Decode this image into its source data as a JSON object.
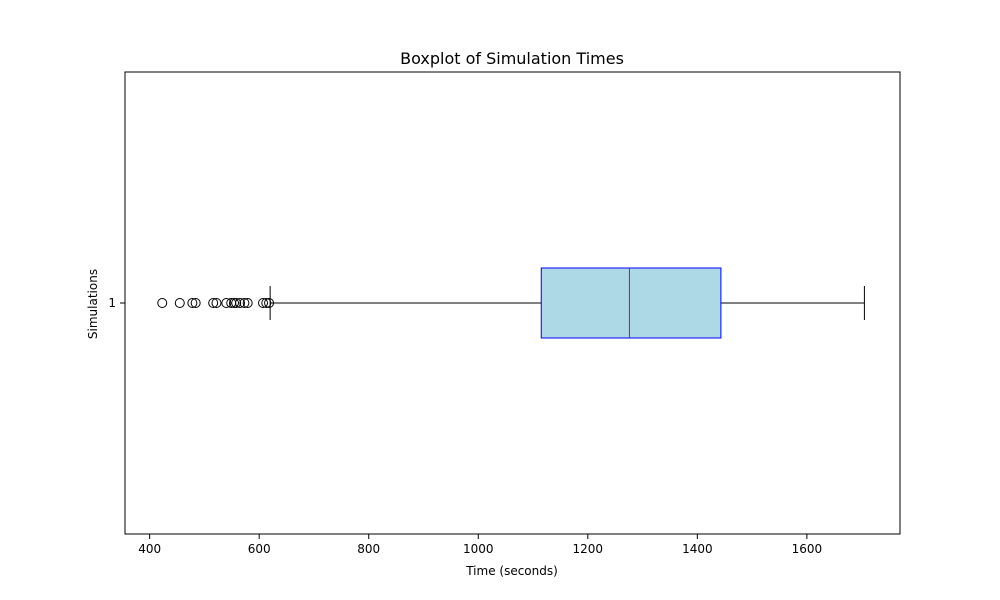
{
  "chart_data": {
    "type": "boxplot",
    "orientation": "horizontal",
    "title": "Boxplot of Simulation Times",
    "xlabel": "Time (seconds)",
    "ylabel": "Simulations",
    "xlim": [
      355,
      1770
    ],
    "x_ticks": [
      400,
      600,
      800,
      1000,
      1200,
      1400,
      1600
    ],
    "category": "1",
    "box": {
      "whisker_low": 620,
      "q1": 1115,
      "median": 1276,
      "q3": 1443,
      "whisker_high": 1705
    },
    "outliers": [
      423,
      455,
      478,
      484,
      516,
      522,
      540,
      549,
      554,
      558,
      565,
      573,
      579,
      607,
      613,
      618
    ],
    "legend": "none",
    "grid": false,
    "colors": {
      "box_fill": "#add8e6",
      "box_edge": "#0000ff",
      "median": "#ff0000",
      "whisker": "#000000",
      "outlier_edge": "#000000"
    }
  }
}
